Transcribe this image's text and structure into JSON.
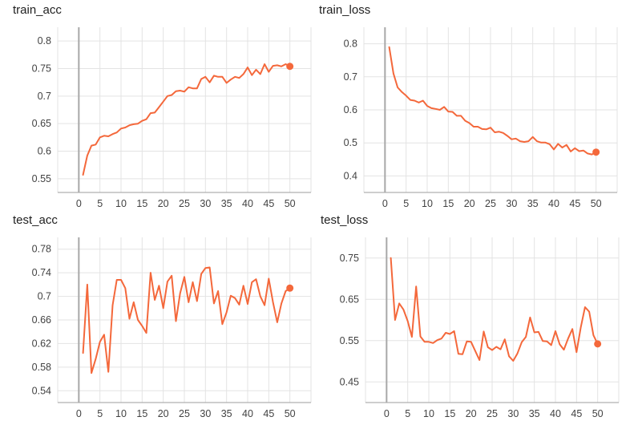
{
  "chart_data": [
    {
      "type": "line",
      "title": "train_acc",
      "x": [
        1,
        2,
        3,
        4,
        5,
        6,
        7,
        8,
        9,
        10,
        11,
        12,
        13,
        14,
        15,
        16,
        17,
        18,
        19,
        20,
        21,
        22,
        23,
        24,
        25,
        26,
        27,
        28,
        29,
        30,
        31,
        32,
        33,
        34,
        35,
        36,
        37,
        38,
        39,
        40,
        41,
        42,
        43,
        44,
        45,
        46,
        47,
        48,
        49,
        50
      ],
      "series": [
        {
          "values": [
            0.557,
            0.592,
            0.61,
            0.612,
            0.625,
            0.628,
            0.627,
            0.631,
            0.634,
            0.641,
            0.643,
            0.647,
            0.649,
            0.65,
            0.655,
            0.658,
            0.669,
            0.67,
            0.68,
            0.69,
            0.7,
            0.702,
            0.709,
            0.71,
            0.708,
            0.716,
            0.714,
            0.714,
            0.731,
            0.735,
            0.725,
            0.737,
            0.735,
            0.735,
            0.724,
            0.73,
            0.735,
            0.733,
            0.74,
            0.752,
            0.738,
            0.748,
            0.74,
            0.758,
            0.744,
            0.755,
            0.756,
            0.754,
            0.758,
            0.754
          ]
        }
      ],
      "color": "#f4683b",
      "xticks": [
        0,
        5,
        10,
        15,
        20,
        25,
        30,
        35,
        40,
        45,
        50
      ],
      "yticks": [
        "0.55",
        "0.6",
        "0.65",
        "0.7",
        "0.75",
        "0.8"
      ],
      "xlim": [
        -5,
        55
      ],
      "ylim": [
        0.525,
        0.825
      ]
    },
    {
      "type": "line",
      "title": "train_loss",
      "x": [
        1,
        2,
        3,
        4,
        5,
        6,
        7,
        8,
        9,
        10,
        11,
        12,
        13,
        14,
        15,
        16,
        17,
        18,
        19,
        20,
        21,
        22,
        23,
        24,
        25,
        26,
        27,
        28,
        29,
        30,
        31,
        32,
        33,
        34,
        35,
        36,
        37,
        38,
        39,
        40,
        41,
        42,
        43,
        44,
        45,
        46,
        47,
        48,
        49,
        50
      ],
      "series": [
        {
          "values": [
            0.79,
            0.71,
            0.668,
            0.654,
            0.643,
            0.63,
            0.628,
            0.622,
            0.628,
            0.612,
            0.605,
            0.603,
            0.6,
            0.609,
            0.595,
            0.594,
            0.582,
            0.582,
            0.567,
            0.56,
            0.549,
            0.549,
            0.542,
            0.541,
            0.546,
            0.532,
            0.534,
            0.53,
            0.521,
            0.511,
            0.513,
            0.505,
            0.503,
            0.505,
            0.518,
            0.505,
            0.501,
            0.501,
            0.496,
            0.48,
            0.497,
            0.486,
            0.494,
            0.474,
            0.484,
            0.475,
            0.477,
            0.468,
            0.465,
            0.472
          ]
        }
      ],
      "color": "#f4683b",
      "xticks": [
        0,
        5,
        10,
        15,
        20,
        25,
        30,
        35,
        40,
        45,
        50
      ],
      "yticks": [
        "0.4",
        "0.5",
        "0.6",
        "0.7",
        "0.8"
      ],
      "xlim": [
        -5,
        55
      ],
      "ylim": [
        0.35,
        0.85
      ]
    },
    {
      "type": "line",
      "title": "test_acc",
      "x": [
        1,
        2,
        3,
        4,
        5,
        6,
        7,
        8,
        9,
        10,
        11,
        12,
        13,
        14,
        15,
        16,
        17,
        18,
        19,
        20,
        21,
        22,
        23,
        24,
        25,
        26,
        27,
        28,
        29,
        30,
        31,
        32,
        33,
        34,
        35,
        36,
        37,
        38,
        39,
        40,
        41,
        42,
        43,
        44,
        45,
        46,
        47,
        48,
        49,
        50
      ],
      "series": [
        {
          "values": [
            0.604,
            0.72,
            0.57,
            0.594,
            0.623,
            0.635,
            0.572,
            0.685,
            0.728,
            0.728,
            0.714,
            0.662,
            0.69,
            0.66,
            0.65,
            0.638,
            0.74,
            0.694,
            0.718,
            0.68,
            0.725,
            0.735,
            0.658,
            0.705,
            0.733,
            0.69,
            0.724,
            0.692,
            0.738,
            0.748,
            0.749,
            0.688,
            0.709,
            0.653,
            0.673,
            0.701,
            0.697,
            0.686,
            0.718,
            0.687,
            0.724,
            0.729,
            0.7,
            0.685,
            0.73,
            0.69,
            0.656,
            0.688,
            0.709,
            0.714
          ]
        }
      ],
      "color": "#f4683b",
      "xticks": [
        0,
        5,
        10,
        15,
        20,
        25,
        30,
        35,
        40,
        45,
        50
      ],
      "yticks": [
        "0.54",
        "0.58",
        "0.62",
        "0.66",
        "0.7",
        "0.74",
        "0.78"
      ],
      "xlim": [
        -5,
        55
      ],
      "ylim": [
        0.52,
        0.8
      ]
    },
    {
      "type": "line",
      "title": "test_loss",
      "x": [
        1,
        2,
        3,
        4,
        5,
        6,
        7,
        8,
        9,
        10,
        11,
        12,
        13,
        14,
        15,
        16,
        17,
        18,
        19,
        20,
        21,
        22,
        23,
        24,
        25,
        26,
        27,
        28,
        29,
        30,
        31,
        32,
        33,
        34,
        35,
        36,
        37,
        38,
        39,
        40,
        41,
        42,
        43,
        44,
        45,
        46,
        47,
        48,
        49,
        50
      ],
      "series": [
        {
          "values": [
            0.75,
            0.6,
            0.64,
            0.625,
            0.597,
            0.559,
            0.681,
            0.56,
            0.547,
            0.547,
            0.544,
            0.551,
            0.555,
            0.569,
            0.566,
            0.573,
            0.518,
            0.517,
            0.548,
            0.547,
            0.525,
            0.503,
            0.572,
            0.534,
            0.527,
            0.535,
            0.529,
            0.553,
            0.512,
            0.501,
            0.519,
            0.546,
            0.559,
            0.606,
            0.57,
            0.571,
            0.549,
            0.548,
            0.539,
            0.573,
            0.541,
            0.528,
            0.555,
            0.578,
            0.522,
            0.582,
            0.631,
            0.62,
            0.563,
            0.542
          ]
        }
      ],
      "color": "#f4683b",
      "xticks": [
        0,
        5,
        10,
        15,
        20,
        25,
        30,
        35,
        40,
        45,
        50
      ],
      "yticks": [
        "0.45",
        "0.55",
        "0.65",
        "0.75"
      ],
      "xlim": [
        -5,
        55
      ],
      "ylim": [
        0.4,
        0.8
      ]
    }
  ]
}
